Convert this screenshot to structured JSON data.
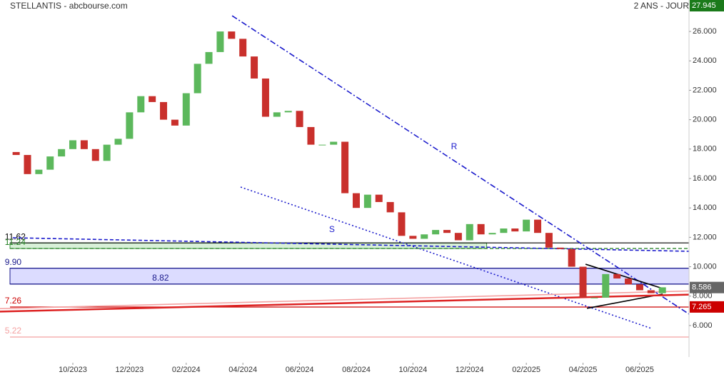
{
  "chart_data": {
    "type": "candlestick",
    "title": "STELLANTIS - abcbourse.com",
    "subtitle": "2 ANS - JOUR",
    "up_color": "#5cb85c",
    "down_color": "#c9302c",
    "x": [
      -2.0,
      -1.6,
      -1.2,
      -0.8,
      -0.4,
      0,
      0.4,
      0.8,
      1.2,
      1.6,
      2.0,
      2.4,
      2.8,
      3.2,
      3.6,
      4.0,
      4.4,
      4.8,
      5.2,
      5.6,
      6.0,
      6.4,
      6.8,
      7.2,
      7.6,
      8.0,
      8.4,
      8.8,
      9.2,
      9.6,
      10.0,
      10.4,
      10.8,
      11.2,
      11.6,
      12.0,
      12.4,
      12.8,
      13.2,
      13.6,
      14.0,
      14.4,
      14.8,
      15.2,
      15.6,
      16.0,
      16.4,
      16.8,
      17.2,
      17.6,
      18.0,
      18.4,
      18.8,
      19.2,
      19.6,
      20.0,
      20.4,
      20.8
    ],
    "open": [
      17.8,
      17.6,
      16.3,
      16.6,
      17.5,
      18.0,
      18.6,
      18.0,
      17.2,
      18.3,
      18.7,
      20.5,
      21.6,
      21.2,
      20.0,
      19.6,
      21.8,
      23.8,
      24.6,
      26.0,
      25.5,
      24.3,
      22.8,
      20.2,
      20.5,
      20.6,
      19.5,
      18.3,
      18.3,
      18.5,
      15.0,
      14.0,
      14.9,
      14.4,
      13.7,
      12.1,
      11.9,
      12.2,
      12.5,
      12.3,
      11.8,
      12.9,
      12.2,
      12.3,
      12.6,
      12.4,
      13.2,
      12.3,
      11.3,
      11.2,
      10.0,
      7.9,
      7.9,
      9.5,
      9.2,
      8.8,
      8.4,
      8.2
    ],
    "close": [
      17.6,
      16.3,
      16.6,
      17.5,
      18.0,
      18.6,
      18.0,
      17.2,
      18.3,
      18.7,
      20.5,
      21.6,
      21.2,
      20.0,
      19.6,
      21.8,
      23.8,
      24.6,
      26.0,
      25.5,
      24.3,
      22.8,
      20.2,
      20.5,
      20.6,
      19.5,
      18.3,
      18.3,
      18.5,
      15.0,
      14.0,
      14.9,
      14.4,
      13.7,
      12.1,
      11.9,
      12.2,
      12.5,
      12.3,
      11.8,
      12.9,
      12.2,
      12.3,
      12.6,
      12.4,
      13.2,
      12.3,
      11.3,
      11.2,
      10.0,
      7.9,
      7.9,
      9.5,
      9.2,
      8.8,
      8.4,
      8.2,
      8.6
    ],
    "xlim": [
      -2.57,
      21.74
    ],
    "xticks": [
      {
        "value": 0,
        "label": "10/2023"
      },
      {
        "value": 2,
        "label": "12/2023"
      },
      {
        "value": 4,
        "label": "02/2024"
      },
      {
        "value": 6,
        "label": "04/2024"
      },
      {
        "value": 8,
        "label": "06/2024"
      },
      {
        "value": 10,
        "label": "08/2024"
      },
      {
        "value": 12,
        "label": "10/2024"
      },
      {
        "value": 14,
        "label": "12/2024"
      },
      {
        "value": 16,
        "label": "02/2025"
      },
      {
        "value": 18,
        "label": "04/2025"
      },
      {
        "value": 20,
        "label": "06/2025"
      }
    ],
    "ylim": [
      3.86,
      28.14
    ],
    "yticks": [
      {
        "value": 6,
        "label": "6.000"
      },
      {
        "value": 8,
        "label": "8.000"
      },
      {
        "value": 10,
        "label": "10.000"
      },
      {
        "value": 12,
        "label": "12.000"
      },
      {
        "value": 14,
        "label": "14.000"
      },
      {
        "value": 16,
        "label": "16.000"
      },
      {
        "value": 18,
        "label": "18.000"
      },
      {
        "value": 20,
        "label": "20.000"
      },
      {
        "value": 22,
        "label": "22.000"
      },
      {
        "value": 24,
        "label": "24.000"
      },
      {
        "value": 26,
        "label": "26.000"
      }
    ],
    "zones": [
      {
        "from": 11.24,
        "to": 11.62,
        "color": "#d8f0d8",
        "border": "#3c9a3c",
        "x_end": 14.6
      },
      {
        "from": 8.82,
        "to": 9.9,
        "color": "#dcdcff",
        "border": "#1a1a8c",
        "x_end": 21.74
      }
    ],
    "levels": [
      {
        "value": 11.62,
        "label": "11.62",
        "color": "#000000",
        "style": "solid",
        "label_x": -2.4
      },
      {
        "value": 11.24,
        "label": "11.24",
        "color": "#1a7a1a",
        "style": "dash",
        "label_x": -2.4
      },
      {
        "value": 9.9,
        "label": "9.90",
        "color": "#1a1a8c",
        "style": "solid",
        "label_x": -2.4
      },
      {
        "value": 8.82,
        "label": "8.82",
        "color": "#1a1a8c",
        "style": "solid",
        "label_x": 2.8
      },
      {
        "value": 7.26,
        "label": "7.26",
        "color": "#cc0000",
        "style": "solid",
        "label_x": -2.4
      },
      {
        "value": 5.22,
        "label": "5.22",
        "color": "#f4a0a0",
        "style": "solid",
        "label_x": -2.4
      }
    ],
    "trendlines": [
      {
        "x": [
          5.62,
          21.74
        ],
        "y": [
          27.07,
          6.78
        ],
        "color": "#1a1acc",
        "style": "dashdot"
      },
      {
        "x": [
          5.92,
          20.4
        ],
        "y": [
          15.42,
          5.81
        ],
        "color": "#1a1acc",
        "style": "dot"
      },
      {
        "x": [
          -2.12,
          21.74
        ],
        "y": [
          11.97,
          11.05
        ],
        "color": "#1a1acc",
        "style": "dash"
      },
      {
        "x": [
          18.09,
          20.81
        ],
        "y": [
          10.17,
          8.52
        ],
        "color": "#000000",
        "style": "solid"
      },
      {
        "x": [
          18.14,
          20.81
        ],
        "y": [
          7.17,
          8.14
        ],
        "color": "#000000",
        "style": "solid"
      },
      {
        "x": [
          -2.57,
          21.74
        ],
        "y": [
          6.95,
          8.1
        ],
        "color": "#dd2222",
        "style": "solid"
      },
      {
        "x": [
          -2.57,
          21.74
        ],
        "y": [
          7.15,
          8.35
        ],
        "color": "#f4a0a0",
        "style": "solid"
      }
    ],
    "annotations": [
      {
        "text": "R",
        "x": 13.45,
        "y": 18.14,
        "color": "#1a1acc"
      },
      {
        "text": "S",
        "x": 9.14,
        "y": 12.5,
        "color": "#1a1acc"
      }
    ],
    "price_tags": [
      {
        "value": 27.945,
        "label": "27.945",
        "color": "#1a7a1a"
      },
      {
        "value": 8.586,
        "label": "8.586",
        "color": "#666666"
      },
      {
        "value": 7.265,
        "label": "7.265",
        "color": "#cc0000"
      }
    ]
  }
}
